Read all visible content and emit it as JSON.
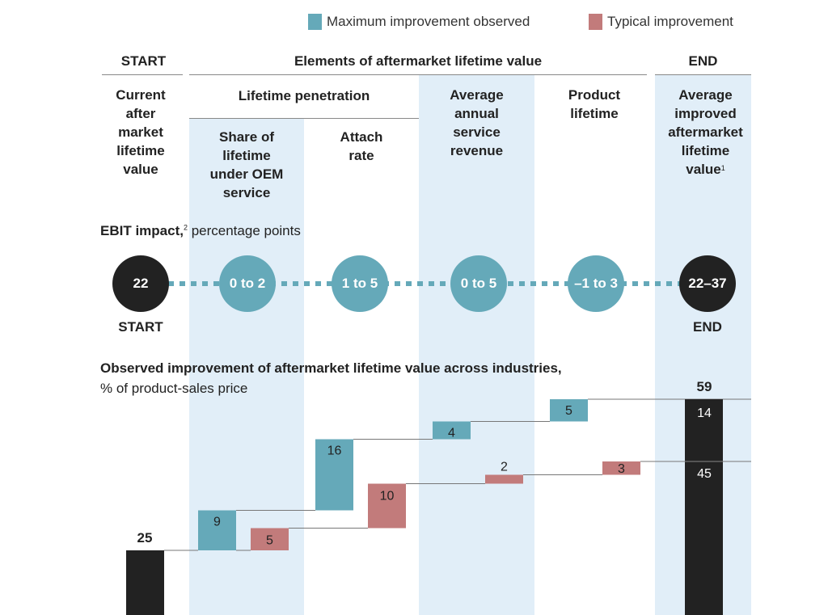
{
  "legend": [
    {
      "label": "Maximum improvement observed",
      "color": "#65a9b9"
    },
    {
      "label": "Typical improvement",
      "color": "#c27b7b"
    }
  ],
  "header": {
    "start_label": "START",
    "elements_label": "Elements of aftermarket lifetime value",
    "end_label": "END",
    "lifetime_penetration_label": "Lifetime penetration"
  },
  "columns": [
    {
      "id": "start",
      "title": "Current after market lifetime value",
      "lines": [
        "Current",
        "after",
        "market",
        "lifetime",
        "value"
      ]
    },
    {
      "id": "share",
      "title": "Share of lifetime under OEM service",
      "lines": [
        "Share of",
        "lifetime",
        "under OEM",
        "service"
      ]
    },
    {
      "id": "attach",
      "title": "Attach rate",
      "lines": [
        "Attach",
        "rate"
      ]
    },
    {
      "id": "revenue",
      "title": "Average annual service revenue",
      "lines": [
        "Average",
        "annual",
        "service",
        "revenue"
      ]
    },
    {
      "id": "lifetime",
      "title": "Product lifetime",
      "lines": [
        "Product",
        "lifetime"
      ]
    },
    {
      "id": "end",
      "title": "Average improved aftermarket lifetime value",
      "lines": [
        "Average",
        "improved",
        "aftermarket",
        "lifetime",
        "value"
      ],
      "footnote": "1"
    }
  ],
  "ebit": {
    "title_bold": "EBIT impact,",
    "footnote": "2",
    "title_rest": " percentage points",
    "values": [
      "22",
      "0 to 2",
      "1 to 5",
      "0 to 5",
      "–1 to 3",
      "22–37"
    ],
    "start_label": "START",
    "end_label": "END"
  },
  "chart_title": {
    "bold": "Observed improvement of aftermarket lifetime value across industries,",
    "sub": "% of product-sales price"
  },
  "chart_data": {
    "type": "bar",
    "subtype": "waterfall",
    "title": "Observed improvement of aftermarket lifetime value across industries",
    "ylabel": "% of product-sales price",
    "categories": [
      "Current aftermarket lifetime value",
      "Share of lifetime under OEM service",
      "Attach rate",
      "Average annual service revenue",
      "Product lifetime",
      "Average improved aftermarket lifetime value"
    ],
    "start": {
      "value": 25,
      "label": "25"
    },
    "series": [
      {
        "name": "Maximum improvement observed",
        "color": "#65a9b9",
        "values": [
          9,
          16,
          4,
          5
        ]
      },
      {
        "name": "Typical improvement",
        "color": "#c27b7b",
        "values": [
          5,
          10,
          2,
          3
        ]
      }
    ],
    "end": {
      "total": 59,
      "typical_total": 45,
      "max_extra": 14,
      "labels": [
        "59",
        "14",
        "45"
      ]
    },
    "legend_position": "top-right",
    "grid": false
  }
}
